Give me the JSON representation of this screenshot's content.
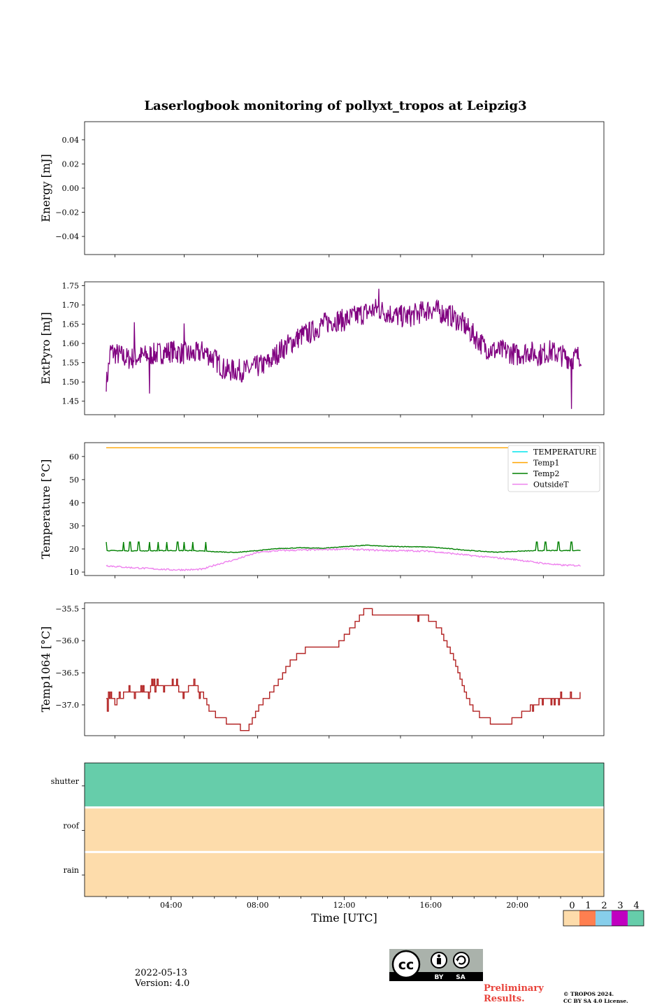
{
  "title": "Laserlogbook monitoring of pollyxt_tropos at Leipzig3",
  "date": "2022-05-13",
  "version": "Version: 4.0",
  "preliminary": "Preliminary\nResults.",
  "copyright_line1": "© TROPOS 2024.",
  "copyright_line2": "CC BY SA 4.0 License.",
  "license_badge": {
    "by": "BY",
    "sa": "SA",
    "cc": "cc"
  },
  "colors": {
    "extpyro": "#800080",
    "temperature": "#00e5ee",
    "temp1": "#ffa500",
    "temp2": "#008000",
    "outsideT": "#ee82ee",
    "temp1064": "#b22222",
    "state0": "#fddcab",
    "state1": "#ff7f50",
    "state2": "#87ceeb",
    "state3": "#c000c0",
    "state4": "#66cdaa"
  },
  "chart_data": [
    {
      "type": "line",
      "id": "energy",
      "ylabel": "Energy [mJ]",
      "xlim": [
        0,
        24
      ],
      "ylim": [
        -0.055,
        0.055
      ],
      "yticks": [
        0.04,
        0.02,
        0.0,
        -0.02,
        -0.04
      ],
      "ytick_labels": [
        "0.04",
        "0.02",
        "0.00",
        "−0.02",
        "−0.04"
      ],
      "series": []
    },
    {
      "type": "line",
      "id": "extpyro",
      "ylabel": "ExtPyro [mJ]",
      "xlim": [
        0,
        24
      ],
      "ylim": [
        1.415,
        1.76
      ],
      "yticks": [
        1.75,
        1.7,
        1.65,
        1.6,
        1.55,
        1.5,
        1.45
      ],
      "ytick_labels": [
        "1.75",
        "1.70",
        "1.65",
        "1.60",
        "1.55",
        "1.50",
        "1.45"
      ],
      "series": [
        {
          "name": "ExtPyro",
          "color_key": "extpyro",
          "trend": [
            [
              1.0,
              1.49
            ],
            [
              1.2,
              1.58
            ],
            [
              2.0,
              1.56
            ],
            [
              3.0,
              1.57
            ],
            [
              4.0,
              1.58
            ],
            [
              5.0,
              1.57
            ],
            [
              5.5,
              1.58
            ],
            [
              6.0,
              1.56
            ],
            [
              6.5,
              1.53
            ],
            [
              7.0,
              1.53
            ],
            [
              7.5,
              1.53
            ],
            [
              8.0,
              1.54
            ],
            [
              8.5,
              1.55
            ],
            [
              9.0,
              1.58
            ],
            [
              9.5,
              1.6
            ],
            [
              10.0,
              1.62
            ],
            [
              10.5,
              1.63
            ],
            [
              11.0,
              1.65
            ],
            [
              11.5,
              1.66
            ],
            [
              12.0,
              1.66
            ],
            [
              12.5,
              1.67
            ],
            [
              13.0,
              1.68
            ],
            [
              13.5,
              1.69
            ],
            [
              14.0,
              1.68
            ],
            [
              14.5,
              1.67
            ],
            [
              15.0,
              1.67
            ],
            [
              15.5,
              1.68
            ],
            [
              16.0,
              1.69
            ],
            [
              16.5,
              1.68
            ],
            [
              17.0,
              1.67
            ],
            [
              17.5,
              1.65
            ],
            [
              18.0,
              1.62
            ],
            [
              18.5,
              1.59
            ],
            [
              19.0,
              1.58
            ],
            [
              19.5,
              1.58
            ],
            [
              20.0,
              1.57
            ],
            [
              20.5,
              1.58
            ],
            [
              21.0,
              1.57
            ],
            [
              21.5,
              1.58
            ],
            [
              22.0,
              1.57
            ],
            [
              22.5,
              1.56
            ],
            [
              22.95,
              1.57
            ]
          ],
          "spikes": [
            [
              1.0,
              1.475
            ],
            [
              2.3,
              1.655
            ],
            [
              3.0,
              1.47
            ],
            [
              4.6,
              1.652
            ],
            [
              8.3,
              1.565
            ],
            [
              13.6,
              1.742
            ],
            [
              22.5,
              1.43
            ]
          ]
        }
      ]
    },
    {
      "type": "line",
      "id": "temperature",
      "ylabel": "Temperature [°C]",
      "xlim": [
        0,
        24
      ],
      "ylim": [
        8.5,
        66
      ],
      "yticks": [
        60,
        50,
        40,
        30,
        20,
        10
      ],
      "ytick_labels": [
        "60",
        "50",
        "40",
        "30",
        "20",
        "10"
      ],
      "legend": {
        "position": "top-right",
        "entries": [
          "TEMPERATURE",
          "Temp1",
          "Temp2",
          "OutsideT"
        ]
      },
      "series": [
        {
          "name": "TEMPERATURE",
          "color_key": "temperature",
          "points": []
        },
        {
          "name": "Temp1",
          "color_key": "temp1",
          "points": [
            [
              1.0,
              63.8
            ],
            [
              22.95,
              63.8
            ]
          ]
        },
        {
          "name": "Temp2",
          "color_key": "temp2",
          "points": [
            [
              1.0,
              19.3
            ],
            [
              2.0,
              19.2
            ],
            [
              3.0,
              19.2
            ],
            [
              4.0,
              19.3
            ],
            [
              5.0,
              19.3
            ],
            [
              6.0,
              18.8
            ],
            [
              7.0,
              18.5
            ],
            [
              8.0,
              19.3
            ],
            [
              9.0,
              20.2
            ],
            [
              10.0,
              20.5
            ],
            [
              11.0,
              20.3
            ],
            [
              12.0,
              21.0
            ],
            [
              13.0,
              21.6
            ],
            [
              14.0,
              21.1
            ],
            [
              15.0,
              21.0
            ],
            [
              16.0,
              20.8
            ],
            [
              17.0,
              20.0
            ],
            [
              18.0,
              19.2
            ],
            [
              19.0,
              18.6
            ],
            [
              20.0,
              19.0
            ],
            [
              21.0,
              19.3
            ],
            [
              22.0,
              19.3
            ],
            [
              22.95,
              19.4
            ]
          ],
          "spikes": [
            1.0,
            1.8,
            2.1,
            2.5,
            3.0,
            3.4,
            3.8,
            4.3,
            4.6,
            5.0,
            5.6,
            20.9,
            21.3,
            21.9,
            22.5
          ]
        },
        {
          "name": "OutsideT",
          "color_key": "outsideT",
          "points": [
            [
              1.0,
              12.8
            ],
            [
              2.0,
              12.0
            ],
            [
              3.0,
              11.5
            ],
            [
              4.0,
              11.0
            ],
            [
              5.0,
              11.0
            ],
            [
              5.5,
              11.3
            ],
            [
              6.0,
              13.0
            ],
            [
              7.0,
              15.5
            ],
            [
              8.0,
              18.5
            ],
            [
              9.0,
              19.3
            ],
            [
              10.0,
              19.5
            ],
            [
              11.0,
              19.7
            ],
            [
              12.0,
              20.0
            ],
            [
              13.0,
              19.6
            ],
            [
              14.0,
              19.3
            ],
            [
              15.0,
              19.2
            ],
            [
              16.0,
              19.0
            ],
            [
              17.0,
              18.0
            ],
            [
              18.0,
              17.0
            ],
            [
              19.0,
              16.2
            ],
            [
              20.0,
              15.3
            ],
            [
              21.0,
              14.0
            ],
            [
              22.0,
              13.0
            ],
            [
              22.95,
              12.8
            ]
          ]
        }
      ]
    },
    {
      "type": "line",
      "id": "temp1064",
      "ylabel": "Temp1064 [°C]",
      "xlim": [
        0,
        24
      ],
      "ylim": [
        -37.48,
        -35.41
      ],
      "yticks": [
        -35.5,
        -36.0,
        -36.5,
        -37.0
      ],
      "ytick_labels": [
        "−35.5",
        "−36.0",
        "−36.5",
        "−37.0"
      ],
      "series": [
        {
          "name": "Temp1064",
          "color_key": "temp1064",
          "points": [
            [
              1.0,
              -37.0
            ],
            [
              1.2,
              -36.9
            ],
            [
              1.5,
              -37.0
            ],
            [
              1.9,
              -36.8
            ],
            [
              2.4,
              -36.8
            ],
            [
              2.8,
              -36.8
            ],
            [
              3.2,
              -36.7
            ],
            [
              4.0,
              -36.7
            ],
            [
              4.6,
              -36.8
            ],
            [
              5.0,
              -36.7
            ],
            [
              5.4,
              -36.8
            ],
            [
              5.8,
              -37.1
            ],
            [
              6.2,
              -37.2
            ],
            [
              6.8,
              -37.3
            ],
            [
              7.5,
              -37.4
            ],
            [
              7.8,
              -37.2
            ],
            [
              8.1,
              -37.0
            ],
            [
              8.4,
              -36.9
            ],
            [
              8.8,
              -36.7
            ],
            [
              9.2,
              -36.5
            ],
            [
              9.6,
              -36.3
            ],
            [
              10.0,
              -36.2
            ],
            [
              10.4,
              -36.1
            ],
            [
              11.0,
              -36.1
            ],
            [
              11.6,
              -36.1
            ],
            [
              12.1,
              -35.9
            ],
            [
              12.4,
              -35.8
            ],
            [
              12.8,
              -35.6
            ],
            [
              13.0,
              -35.5
            ],
            [
              13.6,
              -35.6
            ],
            [
              14.0,
              -35.6
            ],
            [
              15.0,
              -35.6
            ],
            [
              15.4,
              -35.6
            ],
            [
              15.8,
              -35.6
            ],
            [
              16.1,
              -35.7
            ],
            [
              16.4,
              -35.8
            ],
            [
              16.8,
              -36.1
            ],
            [
              17.1,
              -36.3
            ],
            [
              17.4,
              -36.6
            ],
            [
              17.7,
              -36.9
            ],
            [
              18.0,
              -37.1
            ],
            [
              18.5,
              -37.2
            ],
            [
              19.0,
              -37.3
            ],
            [
              19.5,
              -37.3
            ],
            [
              20.0,
              -37.2
            ],
            [
              20.4,
              -37.1
            ],
            [
              20.8,
              -37.0
            ],
            [
              21.2,
              -36.9
            ],
            [
              21.6,
              -36.9
            ],
            [
              22.0,
              -36.9
            ],
            [
              22.5,
              -36.9
            ],
            [
              22.95,
              -36.9
            ]
          ]
        }
      ]
    },
    {
      "type": "heatmap",
      "id": "status",
      "rows": [
        "shutter",
        "roof",
        "rain"
      ],
      "row_states": [
        4,
        0,
        0
      ],
      "xlabel": "Time [UTC]",
      "xticks": [
        4,
        8,
        12,
        16,
        20
      ],
      "xtick_labels": [
        "04:00",
        "08:00",
        "12:00",
        "16:00",
        "20:00"
      ],
      "colorbar": {
        "labels": [
          "0",
          "1",
          "2",
          "3",
          "4"
        ]
      }
    }
  ]
}
